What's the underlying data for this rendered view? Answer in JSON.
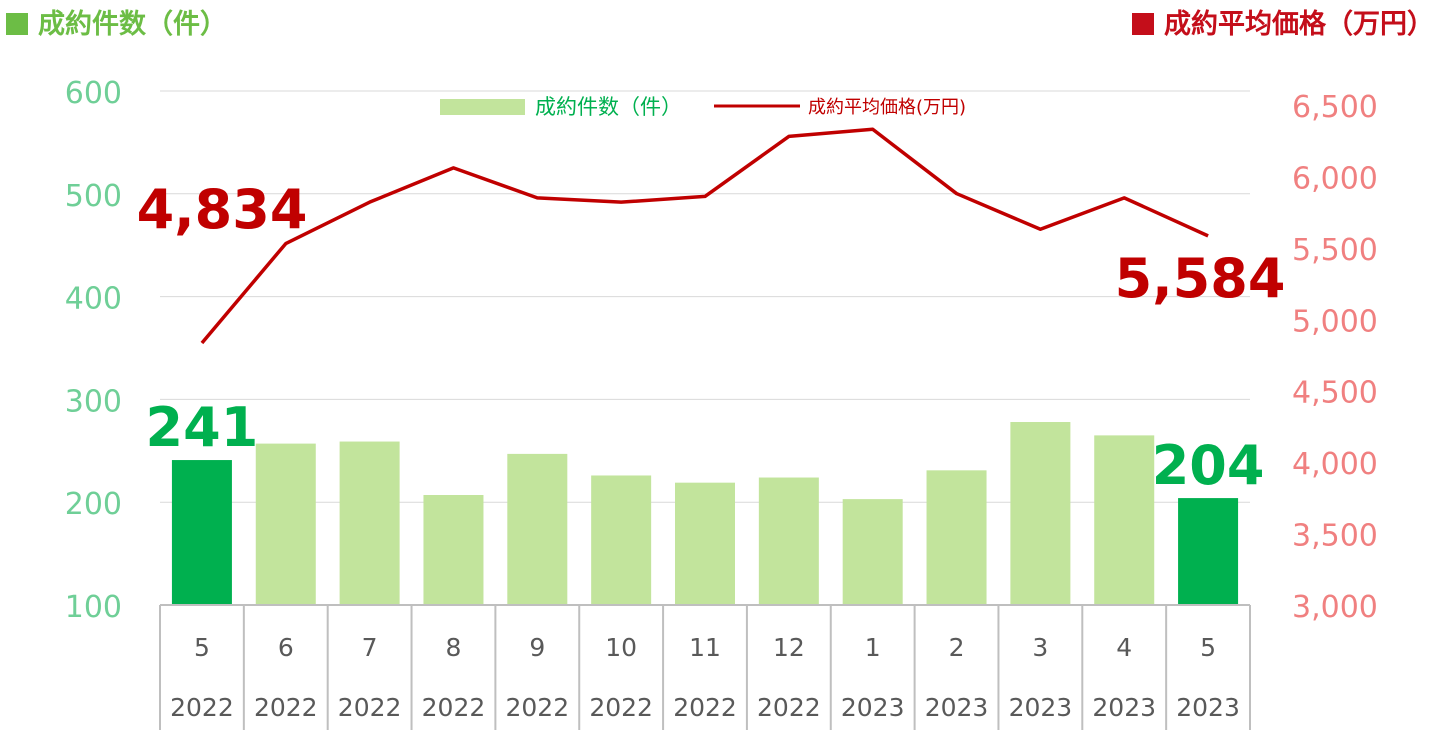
{
  "header": {
    "left_title": "成約件数（件）",
    "right_title": "成約平均価格（万円）"
  },
  "colors": {
    "bar": "#c2e49c",
    "bar_highlight": "#00b04f",
    "line": "#c00000",
    "left_axis": "#6fcf97",
    "right_axis": "#f08080",
    "left_title": "#6cbd45",
    "right_title": "#c40e1a",
    "grid": "#d9d9d9",
    "table_line": "#bfbfbf",
    "tick_text": "#595959"
  },
  "chart_data": {
    "type": "bar",
    "categories": [
      "5",
      "6",
      "7",
      "8",
      "9",
      "10",
      "11",
      "12",
      "1",
      "2",
      "3",
      "4",
      "5"
    ],
    "years": [
      "2022",
      "2022",
      "2022",
      "2022",
      "2022",
      "2022",
      "2022",
      "2022",
      "2023",
      "2023",
      "2023",
      "2023",
      "2023"
    ],
    "series": [
      {
        "name": "成約件数（件）",
        "type": "bar",
        "axis": "left",
        "values": [
          241,
          257,
          259,
          207,
          247,
          226,
          219,
          224,
          203,
          231,
          278,
          265,
          204
        ],
        "highlight": [
          0,
          12
        ]
      },
      {
        "name": "成約平均価格(万円)",
        "type": "line",
        "axis": "right",
        "values": [
          4834,
          5530,
          5820,
          6060,
          5850,
          5820,
          5860,
          6280,
          6330,
          5880,
          5630,
          5850,
          5584
        ]
      }
    ],
    "left_axis": {
      "ylim": [
        100,
        600
      ],
      "ticks": [
        "100",
        "200",
        "300",
        "400",
        "500",
        "600"
      ]
    },
    "right_axis": {
      "ylim": [
        3000,
        6500
      ],
      "ticks": [
        "3,000",
        "3,500",
        "4,000",
        "4,500",
        "5,000",
        "5,500",
        "6,000",
        "6,500"
      ]
    },
    "data_labels": [
      {
        "series": 0,
        "index": 0,
        "text": "241"
      },
      {
        "series": 0,
        "index": 12,
        "text": "204"
      },
      {
        "series": 1,
        "index": 0,
        "text": "4,834"
      },
      {
        "series": 1,
        "index": 12,
        "text": "5,584"
      }
    ],
    "grid": true,
    "legend_position": "top-center"
  }
}
